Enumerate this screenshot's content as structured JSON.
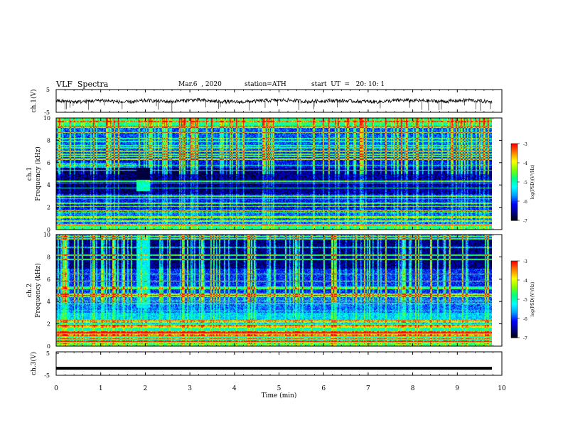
{
  "header": {
    "title": "VLF  Spectra",
    "date": "Mar.6  , 2020",
    "station": "station=ATH",
    "start_ut": "start  UT  =   20: 10: 1"
  },
  "colors": {
    "spectrogram_scale": [
      "#000000",
      "#00008b",
      "#0000ff",
      "#00a0ff",
      "#00ffff",
      "#00ff80",
      "#80ff00",
      "#ffff00",
      "#ff8000",
      "#ff0000",
      "#ffffff"
    ],
    "frame": "#000000",
    "trace": "#000000"
  },
  "chart_data": [
    {
      "type": "line",
      "panel": "ch1-waveform",
      "ylabel": "ch.1(V)",
      "ylim": [
        -5,
        5
      ],
      "yticks": [
        "5",
        "-5"
      ],
      "xlim": [
        0,
        10
      ],
      "series": [
        {
          "values": [
            0,
            -0.4,
            0.3,
            -0.6,
            0.2,
            -0.3,
            0.5,
            -0.2,
            -0.5,
            0.1,
            0.4,
            -0.3,
            0.2,
            -0.1,
            -0.4,
            0.3,
            0.1,
            -0.2,
            0.4,
            -0.5
          ]
        }
      ]
    },
    {
      "type": "heatmap",
      "panel": "ch1-spectrogram",
      "ylabel": "ch.1\nFrequency  (kHz)",
      "ylim": [
        0,
        10
      ],
      "yticks": [
        "10",
        "8",
        "6",
        "4",
        "2",
        "0"
      ],
      "xlim": [
        0,
        9.8
      ],
      "colorbar": {
        "label": "log(PSD)(V²/Hz)",
        "ticks": [
          "-3",
          "-4",
          "-5",
          "-6",
          "-7"
        ],
        "range": [
          -7,
          -3
        ]
      },
      "features": {
        "burst_min": [
          1.8,
          2.1
        ],
        "burst_khz": [
          3.5,
          4.5
        ],
        "quiet_band_khz": [
          3.2,
          5.6
        ]
      }
    },
    {
      "type": "heatmap",
      "panel": "ch2-spectrogram",
      "ylabel": "ch.2\nFrequency  (kHz)",
      "ylim": [
        0,
        10
      ],
      "yticks": [
        "10",
        "8",
        "6",
        "4",
        "2",
        "0"
      ],
      "xlim": [
        0,
        9.8
      ],
      "colorbar": {
        "label": "log(PSD)(V²/Hz)",
        "ticks": [
          "-3",
          "-4",
          "-5",
          "-6",
          "-7"
        ],
        "range": [
          -7,
          -3
        ]
      },
      "features": {
        "burst_min": [
          1.8,
          2.1
        ],
        "burst_khz": [
          3.5,
          10
        ],
        "quiet_band_khz": [
          7,
          9.5
        ]
      }
    },
    {
      "type": "line",
      "panel": "ch3-waveform",
      "ylabel": "ch.3(V)",
      "ylim": [
        -5,
        5
      ],
      "yticks": [
        "5",
        "-5"
      ],
      "xlim": [
        0,
        10
      ],
      "series": [
        {
          "values": [
            -2,
            -2,
            -2,
            -2,
            -2,
            -2,
            -2,
            -2,
            -2,
            -2,
            -2
          ]
        }
      ]
    }
  ],
  "xaxis": {
    "label": "Time  (min)",
    "ticks": [
      "0",
      "1",
      "2",
      "3",
      "4",
      "5",
      "6",
      "7",
      "8",
      "9",
      "10"
    ]
  }
}
